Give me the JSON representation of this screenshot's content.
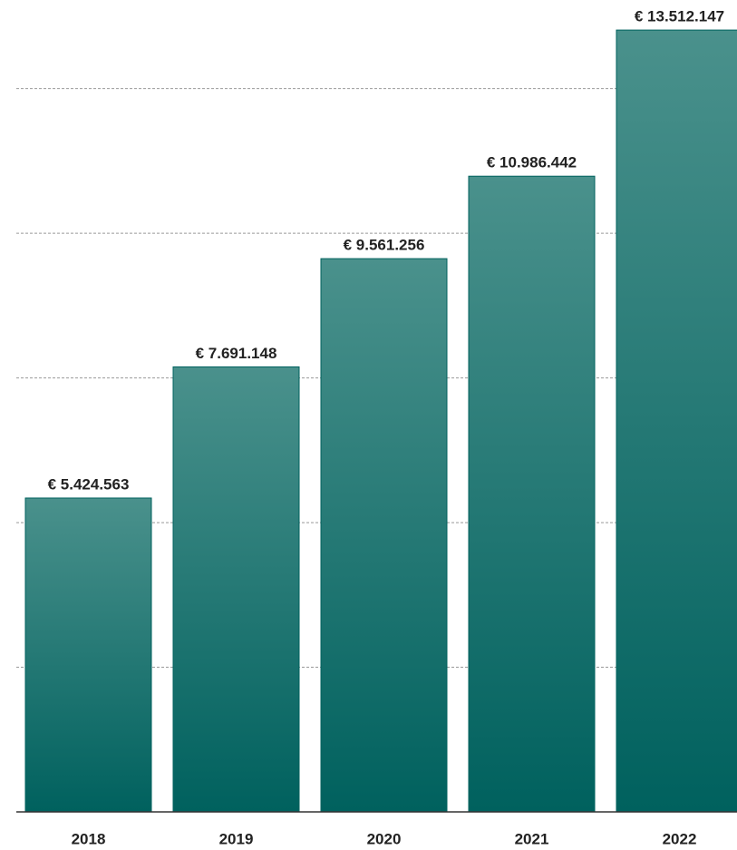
{
  "chart_data": {
    "type": "bar",
    "categories": [
      "2018",
      "2019",
      "2020",
      "2021",
      "2022"
    ],
    "values": [
      5424563,
      7691148,
      9561256,
      10986442,
      13512147
    ],
    "value_labels": [
      "€ 5.424.563",
      "€ 7.691.148",
      "€ 9.561.256",
      "€ 10.986.442",
      "€ 13.512.147"
    ],
    "color": "#00615e",
    "ylim": [
      0,
      14000000
    ],
    "yticks": [
      2500000,
      5000000,
      7500000,
      10000000,
      12500000
    ],
    "grid": true
  }
}
